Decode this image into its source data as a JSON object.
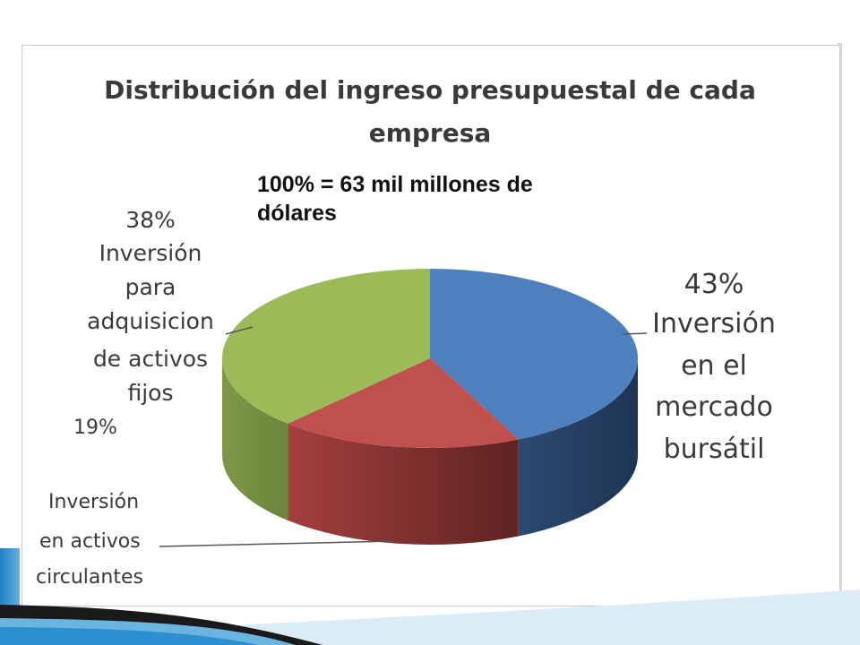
{
  "chart_data": {
    "type": "pie",
    "title_lines": [
      "Distribución del ingreso presupuestal de cada",
      "empresa"
    ],
    "subtitle_lines": [
      "100% = 63 mil millones de",
      "dólares"
    ],
    "slices": [
      {
        "label_lines": [
          "43%",
          "Inversión",
          "en el",
          "mercado",
          "bursátil"
        ],
        "value": 43,
        "color": "#4f7fbd"
      },
      {
        "label_lines": [
          "19%",
          "Inversión",
          "en activos",
          "circulantes"
        ],
        "value": 19,
        "color": "#c0504d"
      },
      {
        "label_lines": [
          "38%",
          "Inversión",
          "para",
          "adquisicion",
          "de activos",
          "fijos"
        ],
        "value": 38,
        "color": "#9bbb59"
      }
    ]
  }
}
